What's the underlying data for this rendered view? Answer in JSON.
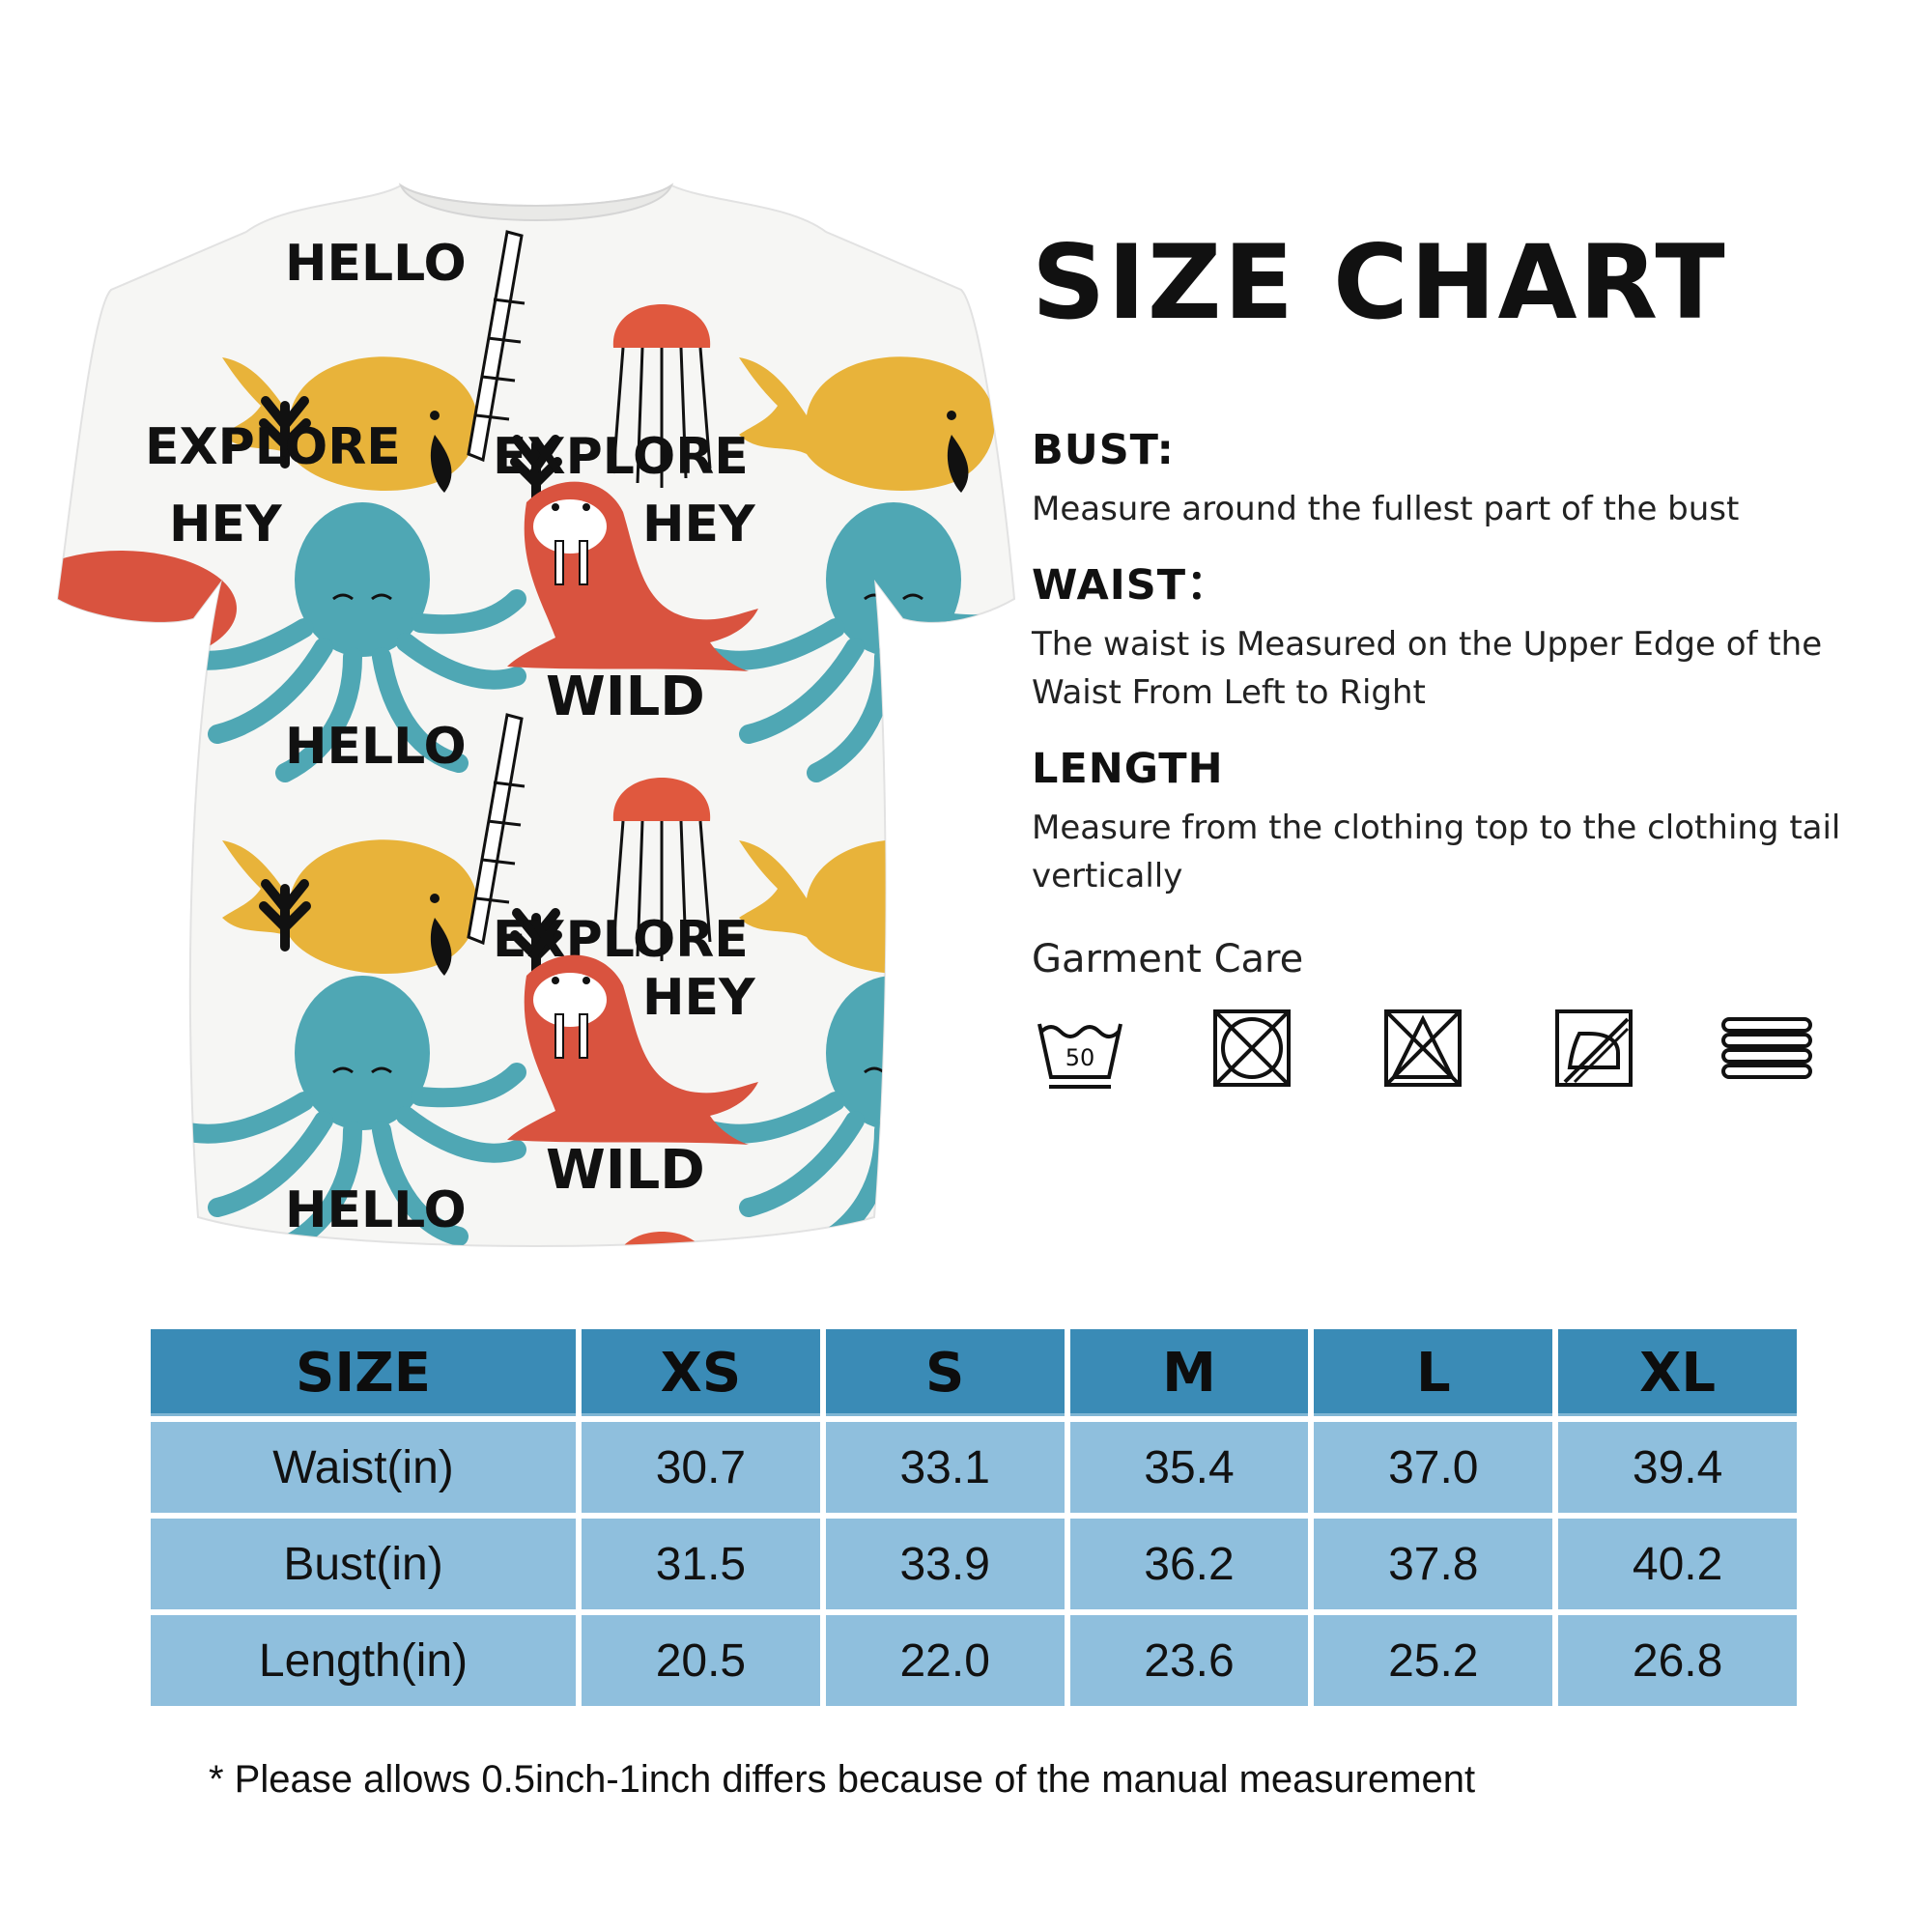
{
  "title": "SIZE CHART",
  "sections": [
    {
      "title": "BUST:",
      "desc": "Measure around the fullest part of the bust"
    },
    {
      "title": "WAIST：",
      "desc": "The waist is Measured on the Upper Edge of the Waist From Left to Right"
    },
    {
      "title": "LENGTH",
      "desc": "Measure from the clothing top to the clothing tail vertically"
    }
  ],
  "care": {
    "title": "Garment Care",
    "icons": [
      "wash-50-icon",
      "no-tumble-dry-icon",
      "no-bleach-icon",
      "no-iron-icon",
      "dry-flat-icon"
    ],
    "wash_temp": "50"
  },
  "shirt_print": {
    "words": [
      "HELLO",
      "EXPLORE",
      "HEY",
      "WILD"
    ],
    "colors": {
      "whale": "#e8b33a",
      "octopus": "#4fa7b4",
      "walrus": "#d9533f",
      "jellyfish": "#e0583e",
      "ink": "#111111"
    }
  },
  "table": {
    "header": [
      "SIZE",
      "XS",
      "S",
      "M",
      "L",
      "XL"
    ],
    "rows": [
      {
        "label": "Waist(in)",
        "values": [
          "30.7",
          "33.1",
          "35.4",
          "37.0",
          "39.4"
        ]
      },
      {
        "label": "Bust(in)",
        "values": [
          "31.5",
          "33.9",
          "36.2",
          "37.8",
          "40.2"
        ]
      },
      {
        "label": "Length(in)",
        "values": [
          "20.5",
          "22.0",
          "23.6",
          "25.2",
          "26.8"
        ]
      }
    ],
    "header_color": "#3a8bb6",
    "cell_color": "#8fbfdd"
  },
  "footnote": "* Please allows 0.5inch-1inch differs because of the manual measurement"
}
